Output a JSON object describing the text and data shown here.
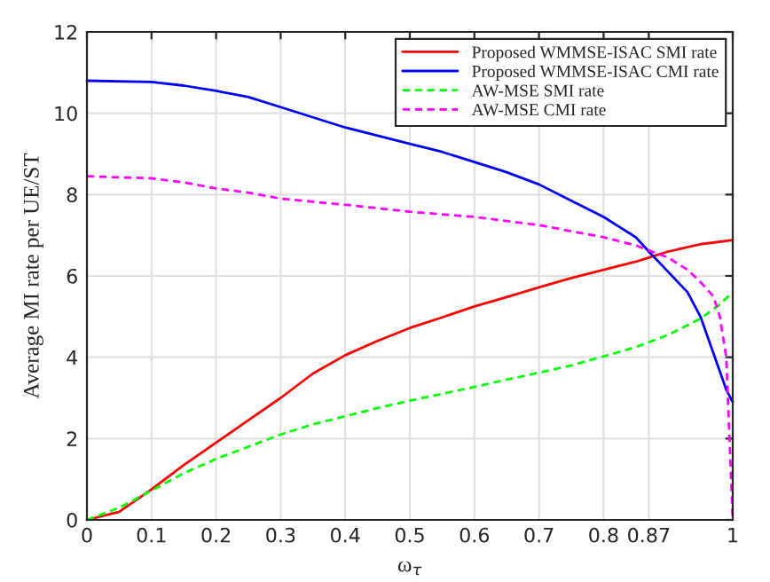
{
  "chart_data": {
    "type": "line",
    "xlabel": "ω$_{τ}$",
    "ylabel": "Average MI rate per UE/ST",
    "xlim": [
      0,
      1
    ],
    "ylim": [
      0,
      12
    ],
    "xticks": [
      0,
      0.1,
      0.2,
      0.3,
      0.4,
      0.5,
      0.6,
      0.7,
      0.8,
      0.87,
      1
    ],
    "yticks": [
      0,
      2,
      4,
      6,
      8,
      10,
      12
    ],
    "grid": true,
    "legend": "top right",
    "series": [
      {
        "name": "Proposed WMMSE-ISAC SMI rate",
        "color": "#ff0000",
        "line_style": "solid",
        "x": [
          0,
          0.05,
          0.1,
          0.15,
          0.2,
          0.25,
          0.3,
          0.35,
          0.4,
          0.45,
          0.5,
          0.55,
          0.6,
          0.65,
          0.7,
          0.75,
          0.8,
          0.85,
          0.87,
          0.9,
          0.95,
          1.0
        ],
        "values": [
          0,
          0.2,
          0.75,
          1.35,
          1.9,
          2.45,
          3.0,
          3.6,
          4.05,
          4.4,
          4.72,
          4.98,
          5.25,
          5.48,
          5.72,
          5.95,
          6.15,
          6.35,
          6.45,
          6.6,
          6.78,
          6.88
        ]
      },
      {
        "name": "Proposed WMMSE-ISAC CMI rate",
        "color": "#0000ff",
        "line_style": "solid",
        "x": [
          0,
          0.1,
          0.15,
          0.2,
          0.25,
          0.3,
          0.35,
          0.4,
          0.45,
          0.5,
          0.55,
          0.6,
          0.65,
          0.7,
          0.75,
          0.8,
          0.85,
          0.87,
          0.9,
          0.93,
          0.95,
          0.97,
          0.99,
          1.0
        ],
        "values": [
          10.8,
          10.77,
          10.68,
          10.55,
          10.4,
          10.15,
          9.9,
          9.65,
          9.45,
          9.25,
          9.05,
          8.8,
          8.55,
          8.25,
          7.85,
          7.45,
          6.95,
          6.6,
          6.1,
          5.6,
          5.0,
          4.1,
          3.2,
          2.9
        ]
      },
      {
        "name": "AW-MSE SMI rate",
        "color": "#00ff00",
        "line_style": "dashed",
        "x": [
          0,
          0.05,
          0.1,
          0.15,
          0.2,
          0.25,
          0.3,
          0.35,
          0.4,
          0.45,
          0.5,
          0.55,
          0.6,
          0.65,
          0.7,
          0.75,
          0.8,
          0.85,
          0.9,
          0.95,
          0.98,
          1.0
        ],
        "values": [
          0,
          0.3,
          0.72,
          1.15,
          1.5,
          1.8,
          2.1,
          2.35,
          2.55,
          2.75,
          2.93,
          3.1,
          3.27,
          3.45,
          3.62,
          3.8,
          4.02,
          4.25,
          4.55,
          4.95,
          5.3,
          5.6
        ]
      },
      {
        "name": "AW-MSE CMI rate",
        "color": "#ff00ff",
        "line_style": "dashed",
        "x": [
          0,
          0.1,
          0.15,
          0.2,
          0.25,
          0.3,
          0.4,
          0.5,
          0.6,
          0.7,
          0.75,
          0.8,
          0.85,
          0.9,
          0.93,
          0.95,
          0.97,
          0.98,
          0.99,
          0.995,
          1.0
        ],
        "values": [
          8.45,
          8.4,
          8.3,
          8.15,
          8.05,
          7.9,
          7.75,
          7.58,
          7.45,
          7.25,
          7.1,
          6.95,
          6.75,
          6.45,
          6.15,
          5.85,
          5.5,
          5.0,
          4.0,
          2.0,
          0
        ]
      }
    ]
  }
}
